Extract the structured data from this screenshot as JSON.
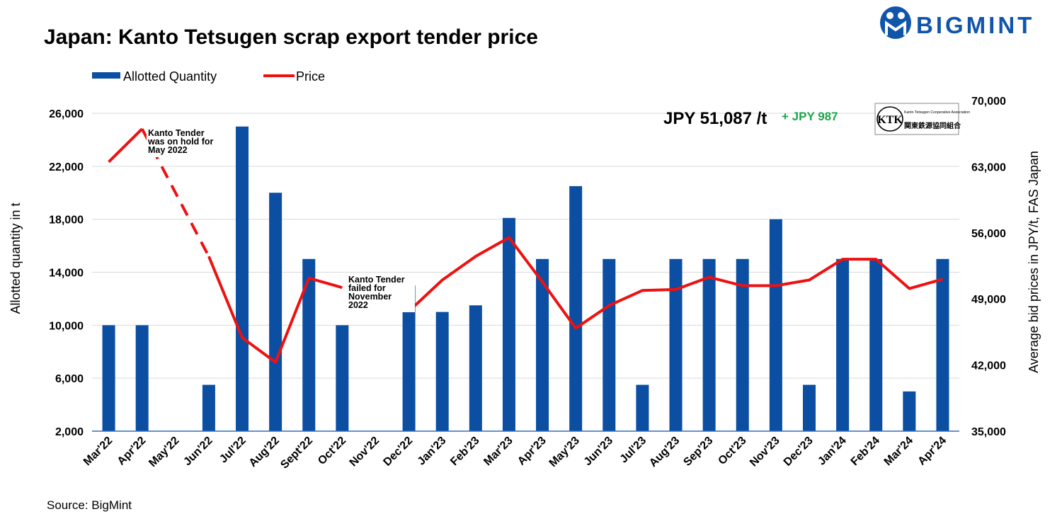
{
  "brand": {
    "name": "BIGMINT",
    "color": "#1155aa"
  },
  "source": "Source: BigMint",
  "highlight": {
    "price": "JPY 51,087 /t",
    "change": "+ JPY 987",
    "change_color": "#1aa64a"
  },
  "ktk_badge": {
    "abbr": "KTK",
    "subtitle": "Kanto Tetsugen Cooperative Association",
    "jp_name": "関東鉄源協同組合"
  },
  "annotations": [
    {
      "lines": [
        "Kanto Tender",
        "was on hold for",
        "May 2022"
      ]
    },
    {
      "lines": [
        "Kanto Tender",
        "failed  for",
        "November",
        "2022"
      ]
    }
  ],
  "chart_data": {
    "type": "bar",
    "title": "Japan: Kanto Tetsugen scrap export tender price",
    "categories": [
      "Mar'22",
      "Apr'22",
      "May'22",
      "Jun'22",
      "Jul'22",
      "Aug'22",
      "Sept'22",
      "Oct'22",
      "Nov'22",
      "Dec'22",
      "Jan'23",
      "Feb'23",
      "Mar'23",
      "Apr'23",
      "May'23",
      "Jun'23",
      "Jul'23",
      "Aug'23",
      "Sep'23",
      "Oct'23",
      "Nov'23",
      "Dec'23",
      "Jan'24",
      "Feb'24",
      "Mar'24",
      "Apr'24"
    ],
    "series": [
      {
        "name": "Allotted Quantity",
        "type": "bar",
        "axis": "left",
        "color": "#0b4ea2",
        "values": [
          10000,
          10000,
          null,
          5500,
          25000,
          20000,
          15000,
          10000,
          null,
          13000,
          11000,
          11500,
          18100,
          15000,
          20500,
          15000,
          5500,
          15000,
          15000,
          15000,
          18000,
          5500,
          15000,
          15000,
          5000,
          15000
        ]
      },
      {
        "name": "Price",
        "type": "line",
        "axis": "right",
        "color": "#ee1111",
        "values": [
          63500,
          67000,
          null,
          53500,
          44900,
          42300,
          51200,
          50200,
          null,
          47700,
          51000,
          53500,
          55500,
          50800,
          45900,
          48300,
          49900,
          50000,
          51300,
          50400,
          50400,
          51000,
          53200,
          53200,
          50100,
          51087
        ]
      }
    ],
    "y_left": {
      "label": "Allotted quantity in t",
      "ticks": [
        2000,
        6000,
        10000,
        14000,
        18000,
        22000,
        26000
      ],
      "range": [
        2000,
        26000
      ]
    },
    "y_right": {
      "label": "Average bid prices in JPY/t, FAS Japan",
      "ticks": [
        35000,
        42000,
        49000,
        56000,
        63000,
        70000
      ],
      "range": [
        35000,
        70000
      ]
    },
    "grid": true,
    "legend_position": "top-left"
  }
}
